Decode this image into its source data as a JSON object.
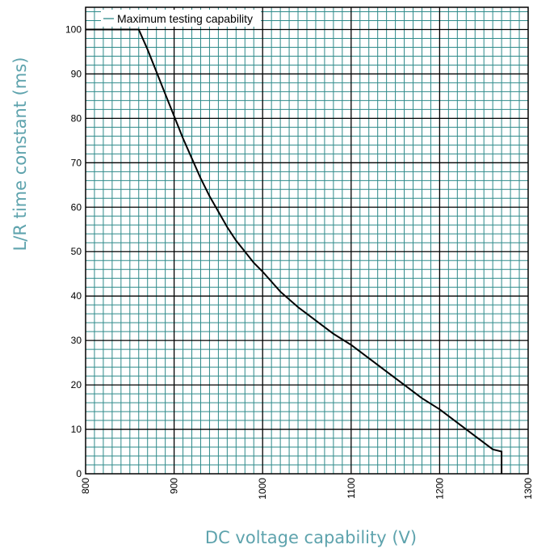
{
  "chart_data": {
    "type": "line",
    "title": "",
    "xlabel": "DC voltage capability (V)",
    "ylabel": "L/R time constant (ms)",
    "xlim": [
      800,
      1300
    ],
    "ylim": [
      0,
      105
    ],
    "x_ticks": [
      "800",
      "900",
      "1000",
      "1100",
      "1200",
      "1300"
    ],
    "y_ticks": [
      "0",
      "10",
      "20",
      "30",
      "40",
      "50",
      "60",
      "70",
      "80",
      "90",
      "100"
    ],
    "grid": true,
    "legend_position": "top-left",
    "series": [
      {
        "name": "Maximum testing capability",
        "x": [
          800,
          860,
          870,
          880,
          890,
          900,
          910,
          920,
          930,
          940,
          950,
          960,
          970,
          980,
          990,
          1000,
          1020,
          1040,
          1060,
          1080,
          1100,
          1120,
          1140,
          1160,
          1180,
          1200,
          1220,
          1240,
          1260,
          1270,
          1270
        ],
        "y": [
          100,
          100,
          95.5,
          90.5,
          85.5,
          80.5,
          75.5,
          71,
          66.5,
          62.5,
          59,
          55.5,
          52.5,
          50,
          47.5,
          45.5,
          41,
          37.5,
          34.5,
          31.5,
          29,
          26,
          23,
          20,
          17,
          14.5,
          11.5,
          8.5,
          5.5,
          5,
          0
        ]
      }
    ]
  },
  "colors": {
    "major_grid": "#000000",
    "minor_grid": "#2e8a8a",
    "line": "#000000",
    "axis_title": "#5ea3ad"
  }
}
